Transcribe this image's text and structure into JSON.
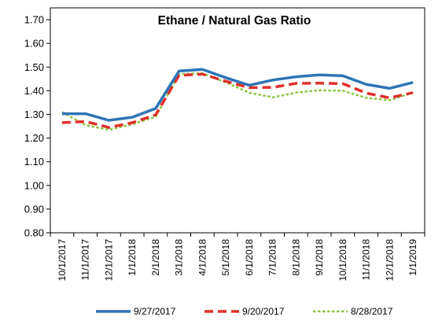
{
  "chart_data": {
    "type": "line",
    "title": "Ethane / Natural Gas Ratio",
    "xlabel": "",
    "ylabel": "",
    "categories": [
      "10/1/2017",
      "11/1/2017",
      "12/1/2017",
      "1/1/2018",
      "2/1/2018",
      "3/1/2018",
      "4/1/2018",
      "5/1/2018",
      "6/1/2018",
      "7/1/2018",
      "8/1/2018",
      "9/1/2018",
      "10/1/2018",
      "11/1/2018",
      "12/1/2018",
      "1/1/2019"
    ],
    "y_ticks": [
      "0.80",
      "0.90",
      "1.00",
      "1.10",
      "1.20",
      "1.30",
      "1.40",
      "1.50",
      "1.60",
      "1.70"
    ],
    "ylim": [
      0.8,
      1.75
    ],
    "grid": false,
    "legend_position": "bottom",
    "series": [
      {
        "name": "9/27/2017",
        "color": "#2E75B6",
        "style": "solid",
        "values": [
          1.303,
          1.303,
          1.275,
          1.288,
          1.325,
          1.483,
          1.49,
          1.455,
          1.423,
          1.445,
          1.459,
          1.467,
          1.463,
          1.427,
          1.41,
          1.435
        ]
      },
      {
        "name": "9/20/2017",
        "color": "#E0302B",
        "style": "dashed",
        "values": [
          1.265,
          1.27,
          1.245,
          1.265,
          1.298,
          1.465,
          1.47,
          1.44,
          1.413,
          1.414,
          1.431,
          1.432,
          1.43,
          1.39,
          1.37,
          1.392
        ]
      },
      {
        "name": "8/28/2017",
        "color": "#8DC63F",
        "style": "dotted",
        "values": [
          1.31,
          1.255,
          1.235,
          1.258,
          1.29,
          1.47,
          1.474,
          1.435,
          1.392,
          1.372,
          1.392,
          1.402,
          1.4,
          1.37,
          1.36,
          1.392
        ]
      }
    ]
  }
}
